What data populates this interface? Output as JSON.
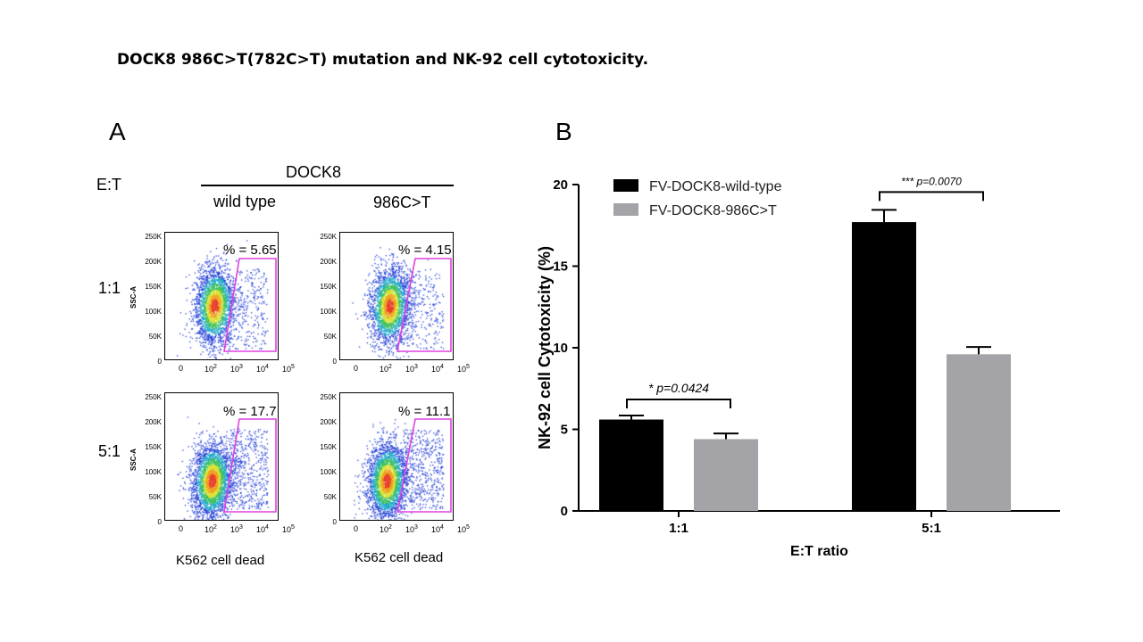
{
  "slide_title": "DOCK8 986C>T(782C>T) mutation and NK-92 cell cytotoxicity.",
  "panel_a": {
    "letter": "A",
    "et_label": "E:T",
    "group_label": "DOCK8",
    "columns": [
      "wild type",
      "986C>T"
    ],
    "rows": [
      "1:1",
      "5:1"
    ],
    "y_axis_label": "SSC-A",
    "y_ticks": [
      "250K",
      "200K",
      "150K",
      "100K",
      "50K",
      "0"
    ],
    "x_ticks": [
      "0",
      "10",
      "10",
      "10",
      "10"
    ],
    "x_tick_exponents": [
      "",
      "2",
      "3",
      "4",
      "5"
    ],
    "x_axis_label": "K562 cell dead",
    "gate_percentages": [
      [
        "% =  5.65",
        "% =  4.15"
      ],
      [
        "% =  17.7",
        "% =  11.1"
      ]
    ],
    "gate_color": "#e040e0"
  },
  "chart_data": {
    "type": "bar",
    "panel_letter": "B",
    "categories": [
      "1:1",
      "5:1"
    ],
    "series": [
      {
        "name": "FV-DOCK8-wild-type",
        "values": [
          5.6,
          17.7
        ],
        "errors": [
          0.25,
          0.75
        ],
        "color": "#000000"
      },
      {
        "name": "FV-DOCK8-986C>T",
        "values": [
          4.4,
          9.6
        ],
        "errors": [
          0.35,
          0.45
        ],
        "color": "#a4a4a8"
      }
    ],
    "xlabel": "E:T ratio",
    "ylabel": "NK-92 cell Cytotoxicity (%)",
    "ylim": [
      0,
      20
    ],
    "yticks": [
      0,
      5,
      10,
      15,
      20
    ],
    "legend_position": "top-left",
    "annotations": [
      {
        "category": "1:1",
        "text": "* p=0.0424"
      },
      {
        "category": "5:1",
        "text": "*** p=0.0070"
      }
    ]
  }
}
